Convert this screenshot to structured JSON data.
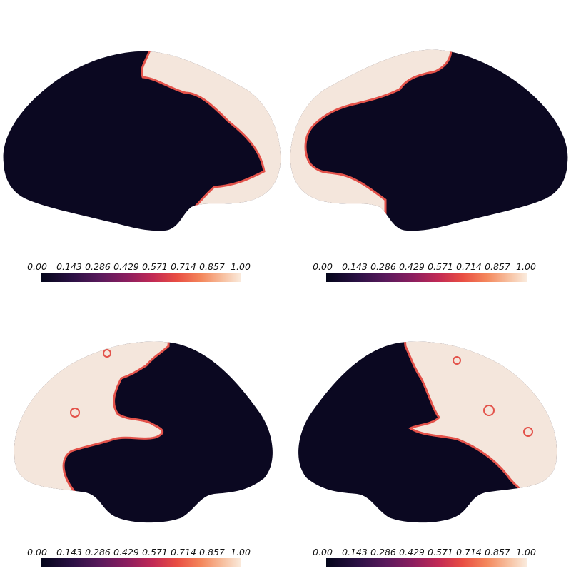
{
  "colorbar": {
    "ticks": [
      "0.00",
      "0.143",
      "0.286",
      "0.429",
      "0.571",
      "0.714",
      "0.857",
      "1.00"
    ],
    "gradient": [
      "#03051a",
      "#2c1145",
      "#5b1a5c",
      "#8b1e5f",
      "#c22a55",
      "#e94e43",
      "#f4875c",
      "#f7c0a0",
      "#faebdd"
    ]
  },
  "colors": {
    "low": "#0b0821",
    "high": "#f4e6dc",
    "edge": "#e3524a"
  },
  "views": [
    {
      "name": "left-lateral-view"
    },
    {
      "name": "right-lateral-view"
    },
    {
      "name": "left-medial-view"
    },
    {
      "name": "right-medial-view"
    }
  ]
}
